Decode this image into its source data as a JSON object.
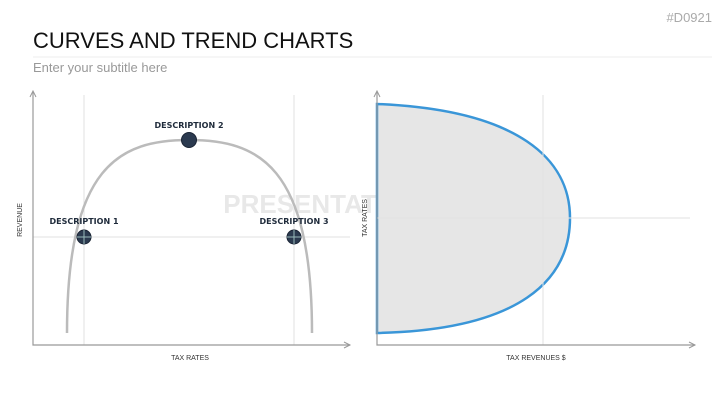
{
  "header": {
    "id": "#D0921",
    "title": "CURVES AND TREND CHARTS",
    "subtitle": "Enter your subtitle here"
  },
  "watermark": "PRESENTATIONLOAD",
  "left_chart": {
    "y_label": "REVENUE",
    "x_label": "TAX RATES",
    "descriptions": [
      "DESCRIPTION 1",
      "DESCRIPTION 2",
      "DESCRIPTION 3"
    ]
  },
  "right_chart": {
    "y_label": "TAX RATES",
    "x_label": "TAX REVENUES $"
  }
}
